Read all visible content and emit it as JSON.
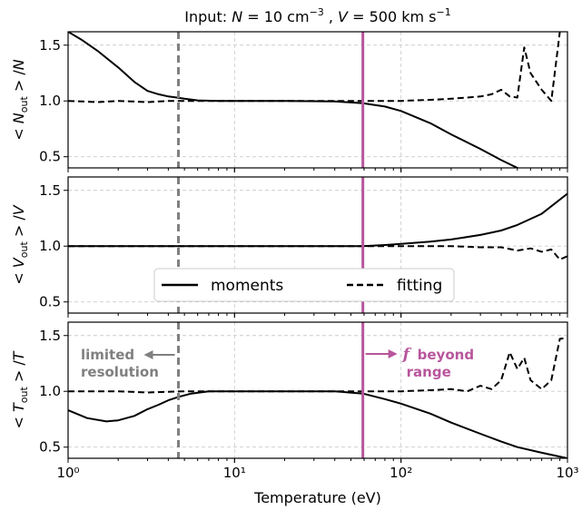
{
  "title": "Input: N = 10 cm⁻³ , V = 500 km s⁻¹",
  "chart_data": {
    "type": "line",
    "xlabel": "Temperature (eV)",
    "xscale": "log",
    "xlim": [
      1,
      1000
    ],
    "x_ticks": [
      1,
      10,
      100,
      1000
    ],
    "x_tick_labels": [
      "10⁰",
      "10¹",
      "10²",
      "10³"
    ],
    "grid": true,
    "legend": {
      "placement": "center of middle panel",
      "entries": [
        "moments",
        "fitting"
      ]
    },
    "vlines": [
      {
        "x": 4.6,
        "style": "dashed",
        "color": "#808080",
        "annotation": "limited resolution",
        "arrow": "left"
      },
      {
        "x": 59,
        "style": "solid",
        "color": "#b8569c",
        "annotation_symbol": "f",
        "annotation": "beyond range",
        "arrow": "right"
      }
    ],
    "panels": [
      {
        "ylabel": "< N_out > /N",
        "ylim": [
          0.4,
          1.62
        ],
        "y_ticks": [
          0.5,
          1.0,
          1.5
        ],
        "y_tick_labels": [
          "0.5",
          "1.0",
          "1.5"
        ],
        "series": [
          {
            "name": "moments",
            "style": "solid",
            "x": [
              1,
              1.2,
              1.5,
              2,
              2.5,
              3,
              3.5,
              4,
              4.5,
              5,
              6,
              8,
              10,
              20,
              40,
              59,
              80,
              100,
              150,
              200,
              300,
              400,
              500,
              600,
              700,
              1000
            ],
            "y": [
              1.62,
              1.55,
              1.45,
              1.3,
              1.17,
              1.09,
              1.06,
              1.04,
              1.03,
              1.02,
              1.005,
              1.0,
              1.0,
              1.0,
              0.995,
              0.98,
              0.95,
              0.91,
              0.8,
              0.7,
              0.57,
              0.47,
              0.4,
              0.35,
              0.31,
              0.25
            ]
          },
          {
            "name": "fitting",
            "style": "dashed",
            "x": [
              1,
              1.5,
              2,
              3,
              4,
              5,
              6,
              8,
              10,
              20,
              40,
              59,
              100,
              150,
              200,
              250,
              300,
              350,
              400,
              450,
              500,
              550,
              600,
              700,
              800,
              900
            ],
            "y": [
              1.0,
              0.99,
              1.0,
              0.99,
              1.0,
              1.0,
              1.0,
              1.0,
              1.0,
              1.0,
              1.0,
              1.0,
              1.0,
              1.01,
              1.02,
              1.03,
              1.04,
              1.06,
              1.1,
              1.04,
              1.03,
              1.48,
              1.25,
              1.1,
              1.0,
              1.62
            ]
          }
        ]
      },
      {
        "ylabel": "< V_out > /V",
        "ylim": [
          0.4,
          1.62
        ],
        "y_ticks": [
          0.5,
          1.0,
          1.5
        ],
        "y_tick_labels": [
          "0.5",
          "1.0",
          "1.5"
        ],
        "series": [
          {
            "name": "moments",
            "style": "solid",
            "x": [
              1,
              10,
              40,
              59,
              80,
              100,
              150,
              200,
              300,
              400,
              500,
              700,
              1000
            ],
            "y": [
              1.0,
              1.0,
              1.0,
              1.0,
              1.01,
              1.02,
              1.04,
              1.06,
              1.1,
              1.14,
              1.19,
              1.29,
              1.47
            ]
          },
          {
            "name": "fitting",
            "style": "dashed",
            "x": [
              1,
              10,
              100,
              200,
              300,
              400,
              500,
              600,
              700,
              800,
              900,
              1000
            ],
            "y": [
              1.0,
              1.0,
              1.0,
              1.0,
              0.99,
              0.99,
              0.96,
              0.98,
              0.95,
              0.97,
              0.88,
              0.91
            ]
          }
        ]
      },
      {
        "ylabel": "< T_out > /T",
        "ylim": [
          0.4,
          1.62
        ],
        "y_ticks": [
          0.5,
          1.0,
          1.5
        ],
        "y_tick_labels": [
          "0.5",
          "1.0",
          "1.5"
        ],
        "series": [
          {
            "name": "moments",
            "style": "solid",
            "x": [
              1,
              1.3,
              1.7,
              2,
              2.5,
              3,
              3.5,
              4,
              4.6,
              5.5,
              7,
              10,
              20,
              40,
              59,
              80,
              100,
              150,
              200,
              300,
              400,
              500,
              700,
              1000
            ],
            "y": [
              0.83,
              0.76,
              0.73,
              0.74,
              0.78,
              0.84,
              0.88,
              0.92,
              0.95,
              0.98,
              1.0,
              1.0,
              1.0,
              1.0,
              0.98,
              0.93,
              0.89,
              0.8,
              0.72,
              0.62,
              0.55,
              0.5,
              0.45,
              0.4
            ]
          },
          {
            "name": "fitting",
            "style": "dashed",
            "x": [
              1,
              2,
              3,
              5,
              8,
              10,
              20,
              40,
              59,
              100,
              150,
              200,
              250,
              300,
              350,
              400,
              450,
              500,
              550,
              600,
              700,
              800,
              900,
              1000
            ],
            "y": [
              1.0,
              1.0,
              0.99,
              1.0,
              1.0,
              1.0,
              1.0,
              1.0,
              1.0,
              1.0,
              1.01,
              1.02,
              1.0,
              1.05,
              1.02,
              1.1,
              1.35,
              1.2,
              1.3,
              1.1,
              1.02,
              1.1,
              1.47,
              1.48
            ]
          }
        ]
      }
    ]
  }
}
